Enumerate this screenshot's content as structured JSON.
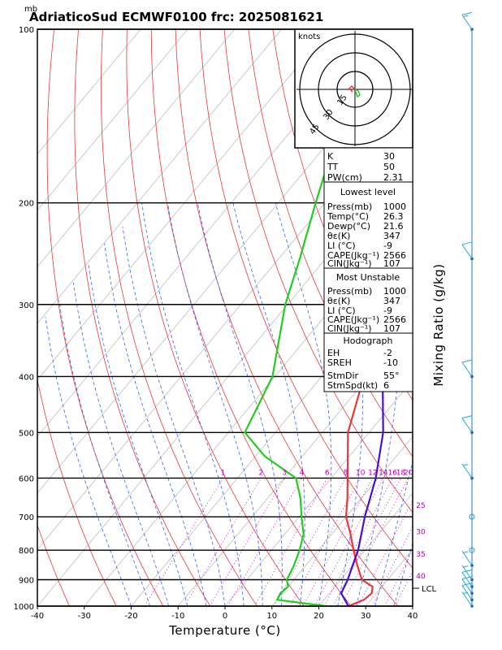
{
  "title": "AdriaticoSud ECMWF0100 frc: 2025081621",
  "unit_mb": "mb",
  "lcl_label": "LCL",
  "mixing_ratio_label": "Mixing Ratio (g/kg)",
  "hodograph": {
    "title": "knots",
    "ring_labels": [
      "15",
      "30",
      "45"
    ]
  },
  "indices": [
    {
      "label": "K",
      "value": "30"
    },
    {
      "label": "TT",
      "value": "50"
    },
    {
      "label": "PW(cm)",
      "value": "2.31"
    }
  ],
  "lowest_level": {
    "header": "Lowest level",
    "rows": [
      {
        "label": "Press(mb)",
        "value": "1000"
      },
      {
        "label": "Temp(°C)",
        "value": "26.3"
      },
      {
        "label": "Dewp(°C)",
        "value": "21.6"
      },
      {
        "label": "θε(K)",
        "value": "347"
      },
      {
        "label": "LI (°C)",
        "value": "-9"
      },
      {
        "label": "CAPE(Jkg⁻¹)",
        "value": "2566"
      },
      {
        "label": "CIN(Jkg⁻¹)",
        "value": "107"
      }
    ]
  },
  "most_unstable": {
    "header": "Most Unstable",
    "rows": [
      {
        "label": "Press(mb)",
        "value": "1000"
      },
      {
        "label": "θε(K)",
        "value": "347"
      },
      {
        "label": "LI (°C)",
        "value": "-9"
      },
      {
        "label": "CAPE(Jkg⁻¹)",
        "value": "2566"
      },
      {
        "label": "CIN(Jkg⁻¹)",
        "value": "107"
      }
    ]
  },
  "hodo_section": {
    "header": "Hodograph",
    "rows": [
      {
        "label": "EH",
        "value": "-2"
      },
      {
        "label": "SREH",
        "value": "-10"
      },
      {
        "label": "StmDir",
        "value": "55°"
      },
      {
        "label": "StmSpd(kt)",
        "value": "6"
      }
    ]
  },
  "chart_data": {
    "type": "line",
    "xlabel": "Temperature (°C)",
    "ylabel": "",
    "xlim": [
      -40,
      40
    ],
    "pressure_range": [
      1000,
      100
    ],
    "x_ticks": [
      -40,
      -30,
      -20,
      -10,
      0,
      10,
      20,
      30,
      40
    ],
    "pressure_ticks": [
      100,
      200,
      300,
      400,
      500,
      600,
      700,
      800,
      900,
      1000
    ],
    "mixing_ratio_labels": [
      "1",
      "2",
      "3",
      "4",
      "6",
      "8",
      "10",
      "12",
      "14",
      "16",
      "18",
      "20",
      "25",
      "30",
      "35",
      "40"
    ],
    "series": [
      {
        "color": "#e8373a",
        "points": [
          [
            1000,
            26.3
          ],
          [
            975,
            28.5
          ],
          [
            950,
            29.0
          ],
          [
            925,
            28.0
          ],
          [
            900,
            24.5
          ],
          [
            850,
            21.0
          ],
          [
            800,
            17.5
          ],
          [
            750,
            14.0
          ],
          [
            700,
            10.0
          ],
          [
            650,
            7.0
          ],
          [
            600,
            3.5
          ],
          [
            500,
            -4.5
          ],
          [
            400,
            -11.0
          ],
          [
            300,
            -21.0
          ],
          [
            250,
            -27.0
          ],
          [
            200,
            -22.0
          ],
          [
            150,
            -17.0
          ],
          [
            100,
            -14.0
          ]
        ]
      },
      {
        "color": "#22cc22",
        "points": [
          [
            1000,
            21.6
          ],
          [
            975,
            10.0
          ],
          [
            950,
            9.5
          ],
          [
            925,
            10.0
          ],
          [
            900,
            8.5
          ],
          [
            850,
            7.5
          ],
          [
            800,
            6.0
          ],
          [
            750,
            4.0
          ],
          [
            700,
            0.5
          ],
          [
            650,
            -3.0
          ],
          [
            600,
            -7.5
          ],
          [
            550,
            -18.0
          ],
          [
            500,
            -26.5
          ],
          [
            400,
            -30.5
          ],
          [
            300,
            -40.5
          ],
          [
            250,
            -45.5
          ],
          [
            200,
            -52.0
          ],
          [
            150,
            -60.0
          ],
          [
            100,
            -66.0
          ]
        ]
      },
      {
        "color": "#4411cc",
        "points": [
          [
            1000,
            26.3
          ],
          [
            950,
            22.5
          ],
          [
            900,
            21.5
          ],
          [
            850,
            20.0
          ],
          [
            800,
            18.5
          ],
          [
            700,
            14.0
          ],
          [
            600,
            9.5
          ],
          [
            500,
            3.0
          ],
          [
            400,
            -7.0
          ],
          [
            300,
            -21.5
          ],
          [
            200,
            -43.0
          ],
          [
            150,
            -58.0
          ],
          [
            115,
            -70.0
          ]
        ]
      }
    ],
    "wind_barbs": [
      {
        "pressure": 100,
        "speed_kt": 15
      },
      {
        "pressure": 250,
        "speed_kt": 10
      },
      {
        "pressure": 400,
        "speed_kt": 10
      },
      {
        "pressure": 500,
        "speed_kt": 10
      },
      {
        "pressure": 600,
        "speed_kt": 5
      },
      {
        "pressure": 700,
        "speed_kt": 0
      },
      {
        "pressure": 800,
        "speed_kt": 0
      },
      {
        "pressure": 850,
        "speed_kt": 5
      },
      {
        "pressure": 900,
        "speed_kt": 5
      },
      {
        "pressure": 925,
        "speed_kt": 10
      },
      {
        "pressure": 950,
        "speed_kt": 10
      },
      {
        "pressure": 975,
        "speed_kt": 10
      },
      {
        "pressure": 1000,
        "speed_kt": 5
      }
    ],
    "grid": true,
    "legend": "none"
  }
}
